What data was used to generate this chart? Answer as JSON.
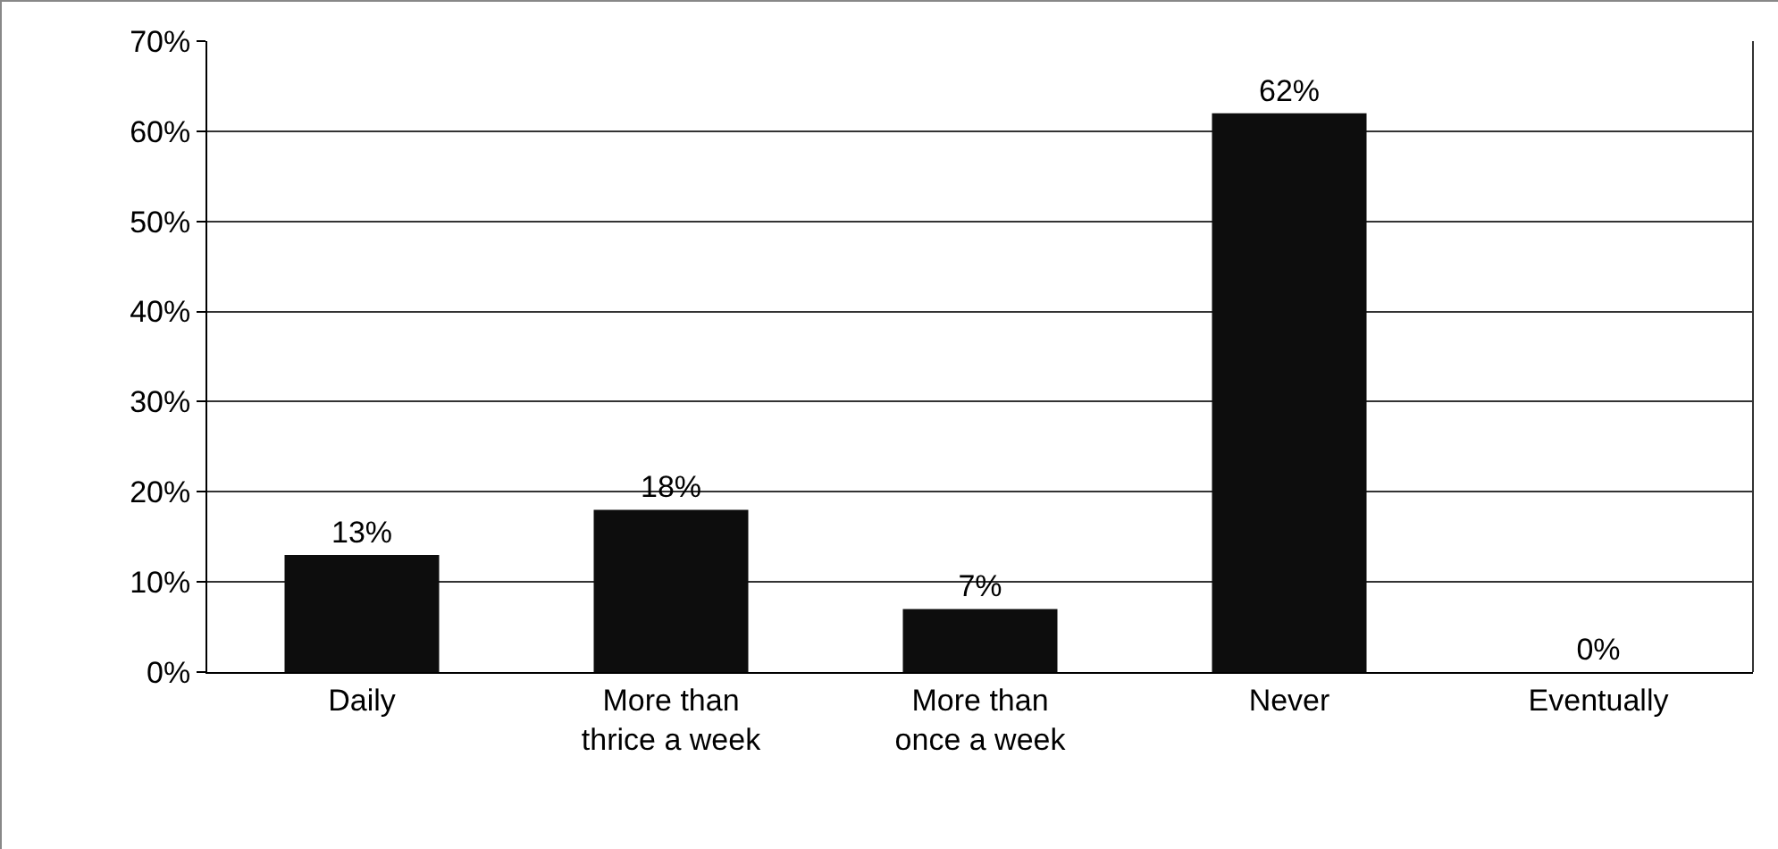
{
  "chart_data": {
    "type": "bar",
    "categories": [
      "Daily",
      "More than thrice a week",
      "More than once a week",
      "Never",
      "Eventually"
    ],
    "values": [
      13,
      18,
      7,
      62,
      0
    ],
    "value_labels": [
      "13%",
      "18%",
      "7%",
      "62%",
      "0%"
    ],
    "color": "#0d0d0d",
    "ylim": [
      0,
      70
    ],
    "yticks": [
      {
        "value": 0,
        "label": "0%"
      },
      {
        "value": 10,
        "label": "10%"
      },
      {
        "value": 20,
        "label": "20%"
      },
      {
        "value": 30,
        "label": "30%"
      },
      {
        "value": 40,
        "label": "40%"
      },
      {
        "value": 50,
        "label": "50%"
      },
      {
        "value": 60,
        "label": "60%"
      },
      {
        "value": 70,
        "label": "70%"
      }
    ],
    "grid": "y"
  }
}
